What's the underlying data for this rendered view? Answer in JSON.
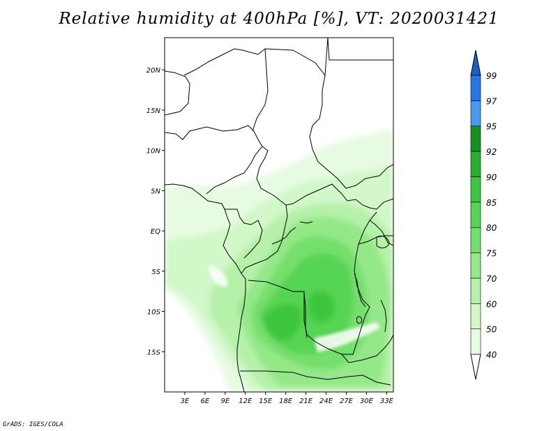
{
  "title": "Relative humidity at 400hPa [%], VT: 2020031421",
  "credit": "GrADS: IGES/COLA",
  "map": {
    "lat_range": [
      -20,
      24
    ],
    "lon_range": [
      0,
      34
    ],
    "lat_ticks": [
      {
        "value": 20,
        "label": "20N"
      },
      {
        "value": 15,
        "label": "15N"
      },
      {
        "value": 10,
        "label": "10N"
      },
      {
        "value": 5,
        "label": "5N"
      },
      {
        "value": 0,
        "label": "EQ"
      },
      {
        "value": -5,
        "label": "5S"
      },
      {
        "value": -10,
        "label": "10S"
      },
      {
        "value": -15,
        "label": "15S"
      }
    ],
    "lon_ticks": [
      {
        "value": 3,
        "label": "3E"
      },
      {
        "value": 6,
        "label": "6E"
      },
      {
        "value": 9,
        "label": "9E"
      },
      {
        "value": 12,
        "label": "12E"
      },
      {
        "value": 15,
        "label": "15E"
      },
      {
        "value": 18,
        "label": "18E"
      },
      {
        "value": 21,
        "label": "21E"
      },
      {
        "value": 24,
        "label": "24E"
      },
      {
        "value": 27,
        "label": "27E"
      },
      {
        "value": 30,
        "label": "30E"
      },
      {
        "value": 33,
        "label": "33E"
      }
    ]
  },
  "colorbar": {
    "levels": [
      {
        "value": 40,
        "label": "40",
        "color": "#e6fbe1"
      },
      {
        "value": 50,
        "label": "50",
        "color": "#d2f7c9"
      },
      {
        "value": 60,
        "label": "60",
        "color": "#b6f1a9"
      },
      {
        "value": 70,
        "label": "70",
        "color": "#94e888"
      },
      {
        "value": 75,
        "label": "75",
        "color": "#74df6c"
      },
      {
        "value": 80,
        "label": "80",
        "color": "#56d453"
      },
      {
        "value": 85,
        "label": "85",
        "color": "#3cc63e"
      },
      {
        "value": 90,
        "label": "90",
        "color": "#2aae2e"
      },
      {
        "value": 92,
        "label": "92",
        "color": "#17911f"
      },
      {
        "value": 95,
        "label": "95",
        "color": "#4a9af0"
      },
      {
        "value": 97,
        "label": "97",
        "color": "#2577e2"
      },
      {
        "value": 99,
        "label": "99",
        "color": "#1a5fc8"
      }
    ],
    "under_color": "#ffffff",
    "over_color": "#1a5fc8"
  }
}
